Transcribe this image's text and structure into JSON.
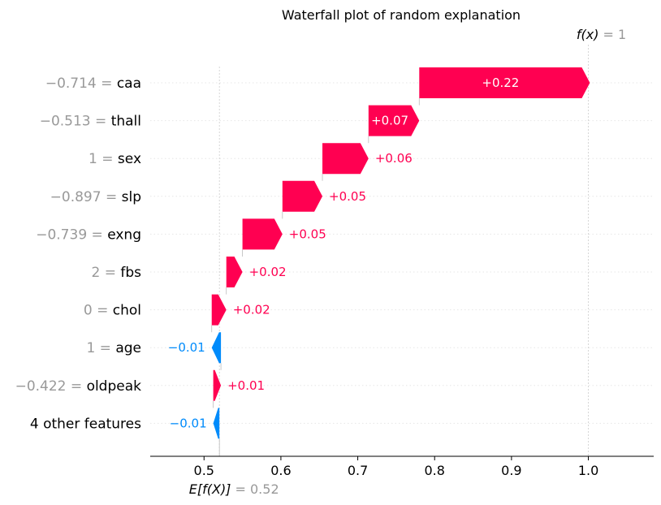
{
  "chart_data": {
    "type": "waterfall",
    "title": "Waterfall plot of random explanation",
    "base_value": 0.52,
    "output_value": 1,
    "base_label": {
      "name": "E[f(X)]",
      "eq": " = ",
      "value": "0.52"
    },
    "output_label": {
      "name": "f(x)",
      "eq": " = ",
      "value": "1"
    },
    "x_ticks": [
      "0.5",
      "0.6",
      "0.7",
      "0.8",
      "0.9",
      "1.0"
    ],
    "x_tick_values": [
      0.5,
      0.6,
      0.7,
      0.8,
      0.9,
      1.0
    ],
    "xlim": [
      0.43,
      1.085
    ],
    "features": [
      {
        "value": "−0.714",
        "name": "caa",
        "contribution": 0.222,
        "label": "+0.22"
      },
      {
        "value": "−0.513",
        "name": "thall",
        "contribution": 0.066,
        "label": "+0.07"
      },
      {
        "value": "1",
        "name": "sex",
        "contribution": 0.06,
        "label": "+0.06"
      },
      {
        "value": "−0.897",
        "name": "slp",
        "contribution": 0.052,
        "label": "+0.05"
      },
      {
        "value": "−0.739",
        "name": "exng",
        "contribution": 0.052,
        "label": "+0.05"
      },
      {
        "value": "2",
        "name": "fbs",
        "contribution": 0.021,
        "label": "+0.02"
      },
      {
        "value": "0",
        "name": "chol",
        "contribution": 0.019,
        "label": "+0.02"
      },
      {
        "value": "1",
        "name": "age",
        "contribution": -0.012,
        "label": "−0.01"
      },
      {
        "value": "−0.422",
        "name": "oldpeak",
        "contribution": 0.01,
        "label": "+0.01"
      },
      {
        "value": "",
        "name": "4 other features",
        "contribution": -0.008,
        "label": "−0.01"
      }
    ],
    "colors": {
      "positive": "#ff0051",
      "negative": "#008bfb",
      "value_text": "#999999",
      "grid": "#cccccc"
    }
  }
}
